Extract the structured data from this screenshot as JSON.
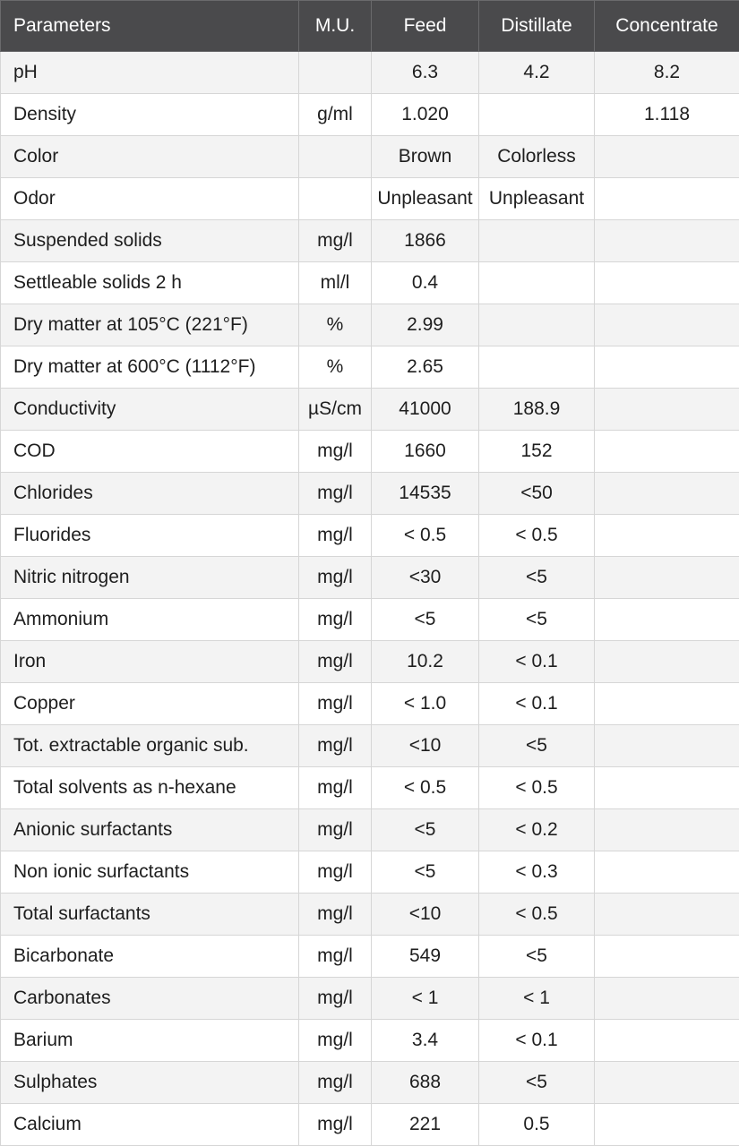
{
  "table": {
    "headers": [
      "Parameters",
      "M.U.",
      "Feed",
      "Distillate",
      "Concentrate"
    ],
    "rows": [
      [
        "pH",
        "",
        "6.3",
        "4.2",
        "8.2"
      ],
      [
        "Density",
        "g/ml",
        "1.020",
        "",
        "1.118"
      ],
      [
        "Color",
        "",
        "Brown",
        "Colorless",
        ""
      ],
      [
        "Odor",
        "",
        "Unpleasant",
        "Unpleasant",
        ""
      ],
      [
        "Suspended solids",
        "mg/l",
        "1866",
        "",
        ""
      ],
      [
        "Settleable solids 2 h",
        "ml/l",
        "0.4",
        "",
        ""
      ],
      [
        "Dry matter at 105°C (221°F)",
        "%",
        "2.99",
        "",
        ""
      ],
      [
        "Dry matter at 600°C (1112°F)",
        "%",
        "2.65",
        "",
        ""
      ],
      [
        "Conductivity",
        "µS/cm",
        "41000",
        "188.9",
        ""
      ],
      [
        "COD",
        "mg/l",
        "1660",
        "152",
        ""
      ],
      [
        "Chlorides",
        "mg/l",
        "14535",
        "<50",
        ""
      ],
      [
        "Fluorides",
        "mg/l",
        "< 0.5",
        "< 0.5",
        ""
      ],
      [
        "Nitric nitrogen",
        "mg/l",
        "<30",
        "<5",
        ""
      ],
      [
        "Ammonium",
        "mg/l",
        "<5",
        "<5",
        ""
      ],
      [
        "Iron",
        "mg/l",
        "10.2",
        "< 0.1",
        ""
      ],
      [
        "Copper",
        "mg/l",
        "< 1.0",
        "< 0.1",
        ""
      ],
      [
        "Tot. extractable organic sub.",
        "mg/l",
        "<10",
        "<5",
        ""
      ],
      [
        "Total solvents as n-hexane",
        "mg/l",
        "< 0.5",
        "< 0.5",
        ""
      ],
      [
        "Anionic surfactants",
        "mg/l",
        "<5",
        "< 0.2",
        ""
      ],
      [
        "Non ionic surfactants",
        "mg/l",
        "<5",
        "< 0.3",
        ""
      ],
      [
        "Total surfactants",
        "mg/l",
        "<10",
        "< 0.5",
        ""
      ],
      [
        "Bicarbonate",
        "mg/l",
        "549",
        "<5",
        ""
      ],
      [
        "Carbonates",
        "mg/l",
        "< 1",
        "< 1",
        ""
      ],
      [
        "Barium",
        "mg/l",
        "3.4",
        "< 0.1",
        ""
      ],
      [
        "Sulphates",
        "mg/l",
        "688",
        "<5",
        ""
      ],
      [
        "Calcium",
        "mg/l",
        "221",
        "0.5",
        ""
      ]
    ]
  },
  "colors": {
    "header_bg": "#4a4a4c",
    "header_text": "#ffffff",
    "row_alt_bg": "#f3f3f3",
    "row_bg": "#ffffff",
    "border": "#d6d6d6",
    "text": "#1e1e1e"
  }
}
